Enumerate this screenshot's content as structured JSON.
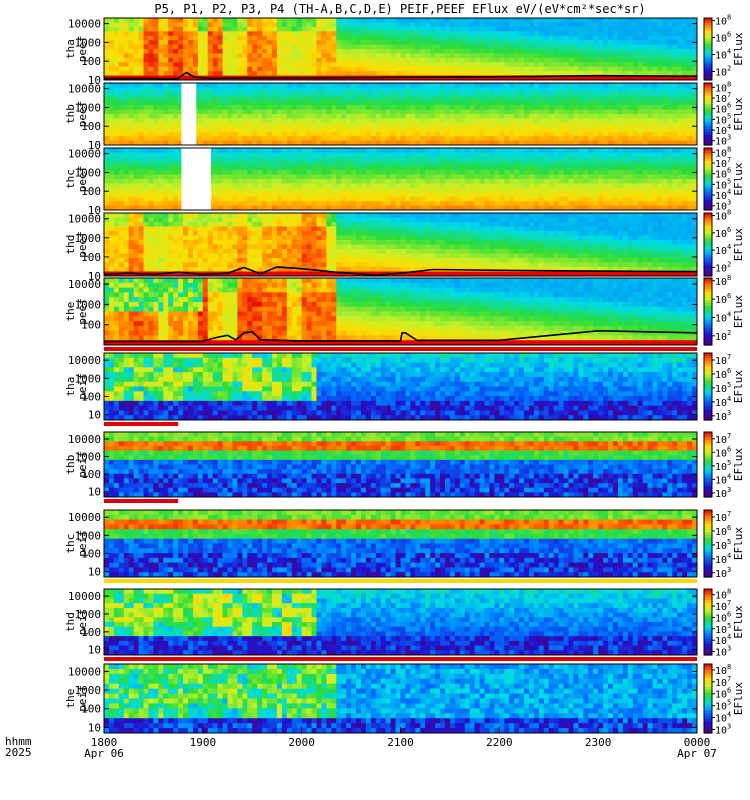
{
  "chart_data": {
    "type": "heatmap",
    "title": "P5, P1, P2, P3, P4 (TH-A,B,C,D,E) PEIF,PEEF EFlux eV/(eV*cm²*sec*sr)",
    "xlabel": "hhmm 2025",
    "x_time_label": "hhmm",
    "x_year_label": "2025",
    "x_ticks": [
      {
        "label": "1800",
        "sublabel": "Apr 06",
        "t": 0
      },
      {
        "label": "1900",
        "sublabel": "",
        "t": 60
      },
      {
        "label": "2000",
        "sublabel": "",
        "t": 120
      },
      {
        "label": "2100",
        "sublabel": "",
        "t": 180
      },
      {
        "label": "2200",
        "sublabel": "",
        "t": 240
      },
      {
        "label": "2300",
        "sublabel": "",
        "t": 300
      },
      {
        "label": "0000",
        "sublabel": "Apr 07",
        "t": 360
      }
    ],
    "xlim_minutes": [
      0,
      360
    ],
    "y_scale": "log",
    "colorscale": "rainbow (purple-blue-green-yellow-red)",
    "panels": [
      {
        "probe": "tha",
        "product": "peef",
        "ylim": [
          10,
          20000
        ],
        "ticks": [
          "10000",
          "1000",
          "100",
          "10"
        ],
        "cbar_ticks": [
          {
            "b": "10",
            "e": "8"
          },
          {
            "b": "10",
            "e": "6"
          },
          {
            "b": "10",
            "e": "4"
          },
          {
            "b": "10",
            "e": "2"
          }
        ],
        "cbar_label": "EFlux",
        "cmin": 1,
        "cmax": 8.3,
        "species": "electron",
        "gaps": [],
        "line": "tha"
      },
      {
        "probe": "thb",
        "product": "peef",
        "ylim": [
          10,
          20000
        ],
        "ticks": [
          "10000",
          "1000",
          "100",
          "10"
        ],
        "cbar_ticks": [
          {
            "b": "10",
            "e": "8"
          },
          {
            "b": "10",
            "e": "7"
          },
          {
            "b": "10",
            "e": "6"
          },
          {
            "b": "10",
            "e": "5"
          },
          {
            "b": "10",
            "e": "4"
          },
          {
            "b": "10",
            "e": "3"
          }
        ],
        "cbar_label": "EFlux",
        "cmin": 2.6,
        "cmax": 8.4,
        "species": "electron",
        "gaps": [
          [
            47,
            56
          ]
        ],
        "line": null
      },
      {
        "probe": "thc",
        "product": "peef",
        "ylim": [
          10,
          20000
        ],
        "ticks": [
          "10000",
          "1000",
          "100",
          "10"
        ],
        "cbar_ticks": [
          {
            "b": "10",
            "e": "8"
          },
          {
            "b": "10",
            "e": "7"
          },
          {
            "b": "10",
            "e": "6"
          },
          {
            "b": "10",
            "e": "5"
          },
          {
            "b": "10",
            "e": "4"
          },
          {
            "b": "10",
            "e": "3"
          }
        ],
        "cbar_label": "EFlux",
        "cmin": 2.6,
        "cmax": 8.4,
        "species": "electron",
        "gaps": [
          [
            47,
            65
          ]
        ],
        "line": null
      },
      {
        "probe": "thd",
        "product": "peef",
        "ylim": [
          10,
          20000
        ],
        "ticks": [
          "10000",
          "1000",
          "100",
          "10"
        ],
        "cbar_ticks": [
          {
            "b": "10",
            "e": "8"
          },
          {
            "b": "10",
            "e": "6"
          },
          {
            "b": "10",
            "e": "4"
          },
          {
            "b": "10",
            "e": "2"
          }
        ],
        "cbar_label": "EFlux",
        "cmin": 1,
        "cmax": 8.3,
        "species": "electron",
        "gaps": [],
        "line": "thd"
      },
      {
        "probe": "the",
        "product": "peef",
        "ylim": [
          10,
          20000
        ],
        "ticks": [
          "10000",
          "1000",
          "100"
        ],
        "cbar_ticks": [
          {
            "b": "10",
            "e": "8"
          },
          {
            "b": "10",
            "e": "6"
          },
          {
            "b": "10",
            "e": "4"
          },
          {
            "b": "10",
            "e": "2"
          }
        ],
        "cbar_label": "EFlux",
        "cmin": 1,
        "cmax": 8.3,
        "species": "electron",
        "gaps": [],
        "line": "the"
      },
      {
        "probe": "tha",
        "product": "peif",
        "ylim": [
          5,
          25000
        ],
        "ticks": [
          "10000",
          "1000",
          "100",
          "10"
        ],
        "cbar_ticks": [
          {
            "b": "10",
            "e": "7"
          },
          {
            "b": "10",
            "e": "6"
          },
          {
            "b": "10",
            "e": "5"
          },
          {
            "b": "10",
            "e": "4"
          },
          {
            "b": "10",
            "e": "3"
          }
        ],
        "cbar_label": "EFlux",
        "cmin": 2.7,
        "cmax": 7.5,
        "species": "ion",
        "gaps": [],
        "line": null
      },
      {
        "probe": "thb",
        "product": "peif",
        "ylim": [
          5,
          25000
        ],
        "ticks": [
          "10000",
          "1000",
          "100",
          "10"
        ],
        "cbar_ticks": [
          {
            "b": "10",
            "e": "7"
          },
          {
            "b": "10",
            "e": "6"
          },
          {
            "b": "10",
            "e": "5"
          },
          {
            "b": "10",
            "e": "4"
          },
          {
            "b": "10",
            "e": "3"
          }
        ],
        "cbar_label": "EFlux",
        "cmin": 2.7,
        "cmax": 7.5,
        "species": "ion_band",
        "gaps": [],
        "line": null
      },
      {
        "probe": "thc",
        "product": "peif",
        "ylim": [
          5,
          25000
        ],
        "ticks": [
          "10000",
          "1000",
          "100",
          "10"
        ],
        "cbar_ticks": [
          {
            "b": "10",
            "e": "7"
          },
          {
            "b": "10",
            "e": "6"
          },
          {
            "b": "10",
            "e": "5"
          },
          {
            "b": "10",
            "e": "4"
          },
          {
            "b": "10",
            "e": "3"
          }
        ],
        "cbar_label": "EFlux",
        "cmin": 2.7,
        "cmax": 7.5,
        "species": "ion_band",
        "gaps": [],
        "line": null
      },
      {
        "probe": "thd",
        "product": "peif",
        "ylim": [
          5,
          25000
        ],
        "ticks": [
          "10000",
          "1000",
          "100",
          "10"
        ],
        "cbar_ticks": [
          {
            "b": "10",
            "e": "8"
          },
          {
            "b": "10",
            "e": "7"
          },
          {
            "b": "10",
            "e": "6"
          },
          {
            "b": "10",
            "e": "5"
          },
          {
            "b": "10",
            "e": "4"
          },
          {
            "b": "10",
            "e": "3"
          }
        ],
        "cbar_label": "EFlux",
        "cmin": 2.7,
        "cmax": 8.5,
        "species": "ion",
        "gaps": [],
        "line": null
      },
      {
        "probe": "the",
        "product": "peif",
        "ylim": [
          5,
          25000
        ],
        "ticks": [
          "10000",
          "1000",
          "100",
          "10"
        ],
        "cbar_ticks": [
          {
            "b": "10",
            "e": "8"
          },
          {
            "b": "10",
            "e": "7"
          },
          {
            "b": "10",
            "e": "6"
          },
          {
            "b": "10",
            "e": "5"
          },
          {
            "b": "10",
            "e": "4"
          },
          {
            "b": "10",
            "e": "3"
          }
        ],
        "cbar_label": "EFlux",
        "cmin": 2.7,
        "cmax": 8.5,
        "species": "ion_fine",
        "gaps": [],
        "line": null
      }
    ],
    "lines": {
      "tha": {
        "minutes": [
          0,
          30,
          40,
          45,
          50,
          55,
          65,
          80,
          120,
          180,
          240,
          300,
          360
        ],
        "energy": [
          12,
          12,
          11,
          12,
          25,
          14,
          12,
          13,
          13,
          14,
          15,
          17,
          16
        ]
      },
      "thd": {
        "minutes": [
          0,
          15,
          30,
          45,
          60,
          75,
          85,
          95,
          105,
          120,
          140,
          165,
          180,
          200,
          240,
          300,
          360
        ],
        "energy": [
          12,
          14,
          12,
          16,
          12,
          14,
          28,
          13,
          30,
          24,
          16,
          11,
          14,
          22,
          20,
          18,
          17
        ]
      },
      "the": {
        "minutes": [
          0,
          30,
          60,
          65,
          70,
          75,
          80,
          85,
          90,
          95,
          120,
          180,
          181,
          183,
          190,
          240,
          300,
          360
        ],
        "energy": [
          15,
          15,
          15,
          20,
          25,
          30,
          18,
          40,
          45,
          18,
          16,
          16,
          40,
          40,
          17,
          17,
          50,
          40
        ]
      }
    }
  }
}
